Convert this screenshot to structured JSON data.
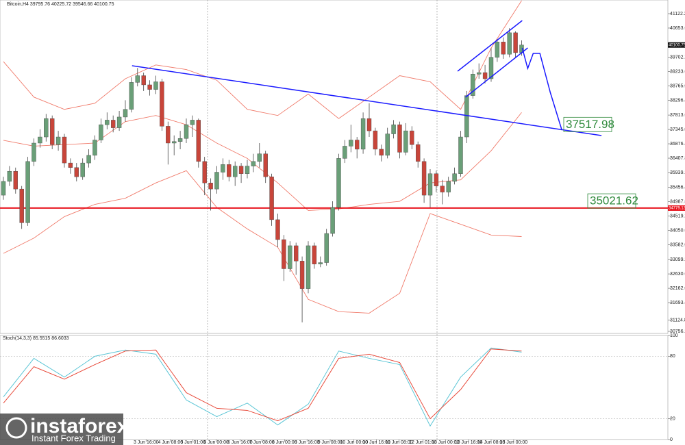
{
  "chart_data": [
    {
      "type": "candlestick",
      "title": "Bitcoin,H4  39795.76 40225.72 39546.66 40100.75",
      "xlim": [
        -0.56,
        108.99
      ],
      "ylim": [
        30689,
        41569
      ],
      "up_color": "#6a9f78",
      "down_color": "#c8453a",
      "open": [
        35200,
        35650,
        35980,
        35400,
        34300,
        36300,
        36900,
        37100,
        37700,
        36850,
        37100,
        36250,
        36100,
        35800,
        36250,
        36500,
        37000,
        37500,
        37650,
        37400,
        37750,
        38000,
        38880,
        39100,
        38800,
        38650,
        38900,
        37450,
        36900,
        36950,
        37050,
        37500,
        37650,
        36300,
        35600,
        35400,
        35950,
        36200,
        35800,
        36150,
        35900,
        36150,
        36300,
        36550,
        35800,
        34400,
        33750,
        32800,
        33550,
        33050,
        32150,
        33550,
        32950,
        33000,
        33950,
        34800,
        36400,
        36800,
        37000,
        36700,
        37700,
        37300,
        36700,
        36500,
        37200,
        37500,
        36600,
        37300,
        36850,
        36300,
        35200,
        35900,
        35500,
        35300,
        35650,
        35900,
        37100,
        38450,
        39150,
        39200,
        39000,
        39700,
        40200,
        39800,
        40500,
        39850
      ],
      "high": [
        35800,
        36150,
        36100,
        35500,
        36450,
        37050,
        37350,
        37850,
        37800,
        37300,
        37200,
        36400,
        36250,
        36400,
        36700,
        37150,
        37700,
        37900,
        37800,
        37950,
        38300,
        39050,
        39350,
        39200,
        38950,
        39100,
        39000,
        37600,
        37150,
        37300,
        37700,
        37800,
        37700,
        36450,
        35750,
        36150,
        36400,
        36350,
        36300,
        36250,
        36350,
        36550,
        36900,
        36650,
        35900,
        34600,
        33900,
        33700,
        33650,
        33200,
        33700,
        33650,
        33200,
        34100,
        35000,
        36550,
        37000,
        37500,
        37100,
        37900,
        38200,
        37400,
        36850,
        37400,
        37650,
        37600,
        37550,
        37450,
        36950,
        36400,
        36050,
        36000,
        35700,
        35800,
        36100,
        37300,
        38600,
        39300,
        39500,
        39450,
        40000,
        40300,
        40350,
        40650,
        40550,
        40250
      ],
      "low": [
        35050,
        35500,
        35250,
        34100,
        34200,
        36150,
        36750,
        36950,
        36700,
        36650,
        36100,
        35900,
        35650,
        35700,
        36100,
        36350,
        36900,
        37350,
        37250,
        37300,
        37600,
        37900,
        38750,
        38600,
        38450,
        38500,
        37300,
        36200,
        36500,
        36700,
        36900,
        37100,
        36100,
        35200,
        34700,
        35250,
        35700,
        35650,
        35500,
        35600,
        35750,
        35950,
        36100,
        35600,
        34200,
        33500,
        32400,
        32700,
        32600,
        31050,
        32000,
        32800,
        32850,
        32900,
        33850,
        34700,
        36250,
        36600,
        36400,
        36550,
        37100,
        36500,
        36300,
        36400,
        37050,
        36400,
        36500,
        36700,
        36100,
        34950,
        34800,
        35300,
        34900,
        35150,
        35550,
        35800,
        36900,
        38350,
        39000,
        38850,
        38900,
        39550,
        39650,
        39700,
        39700,
        39750
      ],
      "close": [
        35650,
        35980,
        35400,
        34300,
        36300,
        36900,
        37100,
        37700,
        36850,
        37100,
        36250,
        36100,
        35800,
        36250,
        36500,
        37000,
        37500,
        37650,
        37400,
        37750,
        38000,
        38880,
        39100,
        38800,
        38650,
        38900,
        37450,
        36900,
        36950,
        37050,
        37500,
        37650,
        36300,
        35600,
        35400,
        35950,
        36200,
        35800,
        36150,
        35900,
        36150,
        36300,
        36550,
        35800,
        34400,
        33750,
        32800,
        33550,
        33050,
        32150,
        33550,
        32950,
        33000,
        33950,
        34800,
        36400,
        36800,
        37000,
        36700,
        37700,
        37300,
        36700,
        36500,
        37200,
        37500,
        36600,
        37300,
        36850,
        36300,
        35200,
        35900,
        35500,
        35300,
        35650,
        35900,
        37100,
        38450,
        39150,
        39200,
        39000,
        39700,
        40200,
        39800,
        40500,
        39850,
        40100
      ],
      "bands": [
        {
          "color": "#f07a6a",
          "x": [
            0,
            5,
            10,
            15,
            20,
            25,
            30,
            35,
            40,
            45,
            50,
            55,
            60,
            65,
            70,
            75,
            80,
            85
          ],
          "values": [
            39560,
            38400,
            38000,
            38200,
            39000,
            39450,
            39300,
            38950,
            38000,
            37800,
            38500,
            37700,
            38400,
            39100,
            38900,
            38000,
            40000,
            41550
          ]
        },
        {
          "color": "#f07a6a",
          "x": [
            0,
            5,
            10,
            15,
            20,
            25,
            30,
            35,
            40,
            45,
            50,
            55,
            60,
            65,
            70,
            75,
            80,
            85
          ],
          "values": [
            36990,
            36800,
            36850,
            36900,
            37600,
            37800,
            37500,
            36900,
            36400,
            35600,
            34700,
            34750,
            34900,
            35000,
            35600,
            35700,
            36650,
            37900
          ]
        },
        {
          "color": "#f07a6a",
          "x": [
            0,
            5,
            10,
            15,
            20,
            25,
            30,
            35,
            40,
            45,
            50,
            55,
            60,
            65,
            70,
            75,
            80,
            85
          ],
          "values": [
            33300,
            33800,
            34500,
            34900,
            35100,
            35600,
            36000,
            34800,
            34100,
            33500,
            31800,
            31400,
            31350,
            32000,
            34600,
            34250,
            33900,
            33850
          ]
        }
      ],
      "trendlines": [
        {
          "color": "#1a1aff",
          "x": [
            21.1,
            98.1
          ],
          "values": [
            39424,
            37146
          ]
        },
        {
          "color": "#1a1aff",
          "x": [
            74.5,
            85.1
          ],
          "values": [
            39246,
            40899
          ]
        },
        {
          "color": "#1a1aff",
          "x": [
            75.8,
            86.0
          ],
          "values": [
            38397,
            40005
          ]
        },
        {
          "color": "#1a1aff",
          "x": [
            85.1,
            86.0,
            86.9,
            88.0,
            89.7,
            91.6
          ],
          "values": [
            40005,
            39335,
            39826,
            39826,
            38553,
            37324
          ]
        }
      ],
      "levels": [
        37517.98,
        35021.62
      ],
      "hline": {
        "value": 34779.13,
        "color": "#e8141e"
      },
      "last_price": 40100.75,
      "yticks": [
        {
          "value": 41122.2,
          "label": "41122.20"
        },
        {
          "value": 40653.6,
          "label": "40653.60"
        },
        {
          "value": 39702.2,
          "label": "39702.20"
        },
        {
          "value": 39233.6,
          "label": "39233.60"
        },
        {
          "value": 38765,
          "label": "38765.00"
        },
        {
          "value": 38296.4,
          "label": "38296.40"
        },
        {
          "value": 37813.6,
          "label": "37813.60"
        },
        {
          "value": 37345,
          "label": "37345.00"
        },
        {
          "value": 36876.4,
          "label": "36876.40"
        },
        {
          "value": 36407.8,
          "label": "36407.80"
        },
        {
          "value": 35939.2,
          "label": "35939.20"
        },
        {
          "value": 35456.4,
          "label": "35456.40"
        },
        {
          "value": 34987.8,
          "label": "34987.80"
        },
        {
          "value": 34519.2,
          "label": "34519.20"
        },
        {
          "value": 34050.6,
          "label": "34050.60"
        },
        {
          "value": 33582,
          "label": "33582.00"
        },
        {
          "value": 33099.2,
          "label": "33099.20"
        },
        {
          "value": 32630.6,
          "label": "32630.60"
        },
        {
          "value": 32162,
          "label": "32162.00"
        },
        {
          "value": 31693.4,
          "label": "31693.40"
        },
        {
          "value": 31124.8,
          "label": "31124.80"
        },
        {
          "value": 30756.2,
          "label": "30756.20"
        }
      ],
      "xticks": [
        {
          "value": 23.4,
          "label": "3 Jun 16:00"
        },
        {
          "value": 27.4,
          "label": "4 Jun 08:00"
        },
        {
          "value": 31.1,
          "label": "5 Jun 01:00"
        },
        {
          "value": 34.9,
          "label": "6 Jun 00:00"
        },
        {
          "value": 38.8,
          "label": "6 Jun 16:00"
        },
        {
          "value": 42.4,
          "label": "7 Jun 08:00"
        },
        {
          "value": 46.1,
          "label": "8 Jun 00:00"
        },
        {
          "value": 49.8,
          "label": "8 Jun 16:00"
        },
        {
          "value": 53.6,
          "label": "9 Jun 08:00"
        },
        {
          "value": 57.5,
          "label": "10 Jun 00:00"
        },
        {
          "value": 61.2,
          "label": "10 Jun 16:00"
        },
        {
          "value": 64.9,
          "label": "11 Jun 08:00"
        },
        {
          "value": 68.8,
          "label": "12 Jun 01:00"
        },
        {
          "value": 72.5,
          "label": "13 Jun 00:00"
        },
        {
          "value": 76.3,
          "label": "13 Jun 16:00"
        },
        {
          "value": 80.0,
          "label": "14 Jun 08:00"
        },
        {
          "value": 83.7,
          "label": "15 Jun 00:00"
        }
      ]
    },
    {
      "type": "line",
      "title": "Stoch(14,3,3) 85.5515 86.6033",
      "xlim": [
        -0.56,
        108.99
      ],
      "ylim": [
        0,
        100
      ],
      "yticks": [
        0,
        20,
        80,
        100
      ],
      "series": [
        {
          "color": "#5cc6d6",
          "x": [
            0,
            5,
            10,
            15,
            20,
            25,
            30,
            35,
            40,
            45,
            50,
            55,
            60,
            65,
            70,
            75,
            80,
            85
          ],
          "values": [
            41,
            78,
            60,
            80,
            86,
            82,
            38,
            22,
            35,
            14,
            34,
            85,
            78,
            72,
            13,
            60,
            88,
            84
          ]
        },
        {
          "color": "#e84a3a",
          "x": [
            0,
            5,
            10,
            15,
            20,
            25,
            30,
            35,
            40,
            45,
            50,
            55,
            60,
            65,
            70,
            75,
            80,
            85
          ],
          "values": [
            35,
            70,
            58,
            72,
            85,
            86,
            45,
            30,
            28,
            18,
            30,
            78,
            82,
            74,
            20,
            48,
            87,
            85
          ]
        }
      ]
    }
  ],
  "logo": {
    "name": "instaforex",
    "tagline": "Instant Forex Trading"
  }
}
